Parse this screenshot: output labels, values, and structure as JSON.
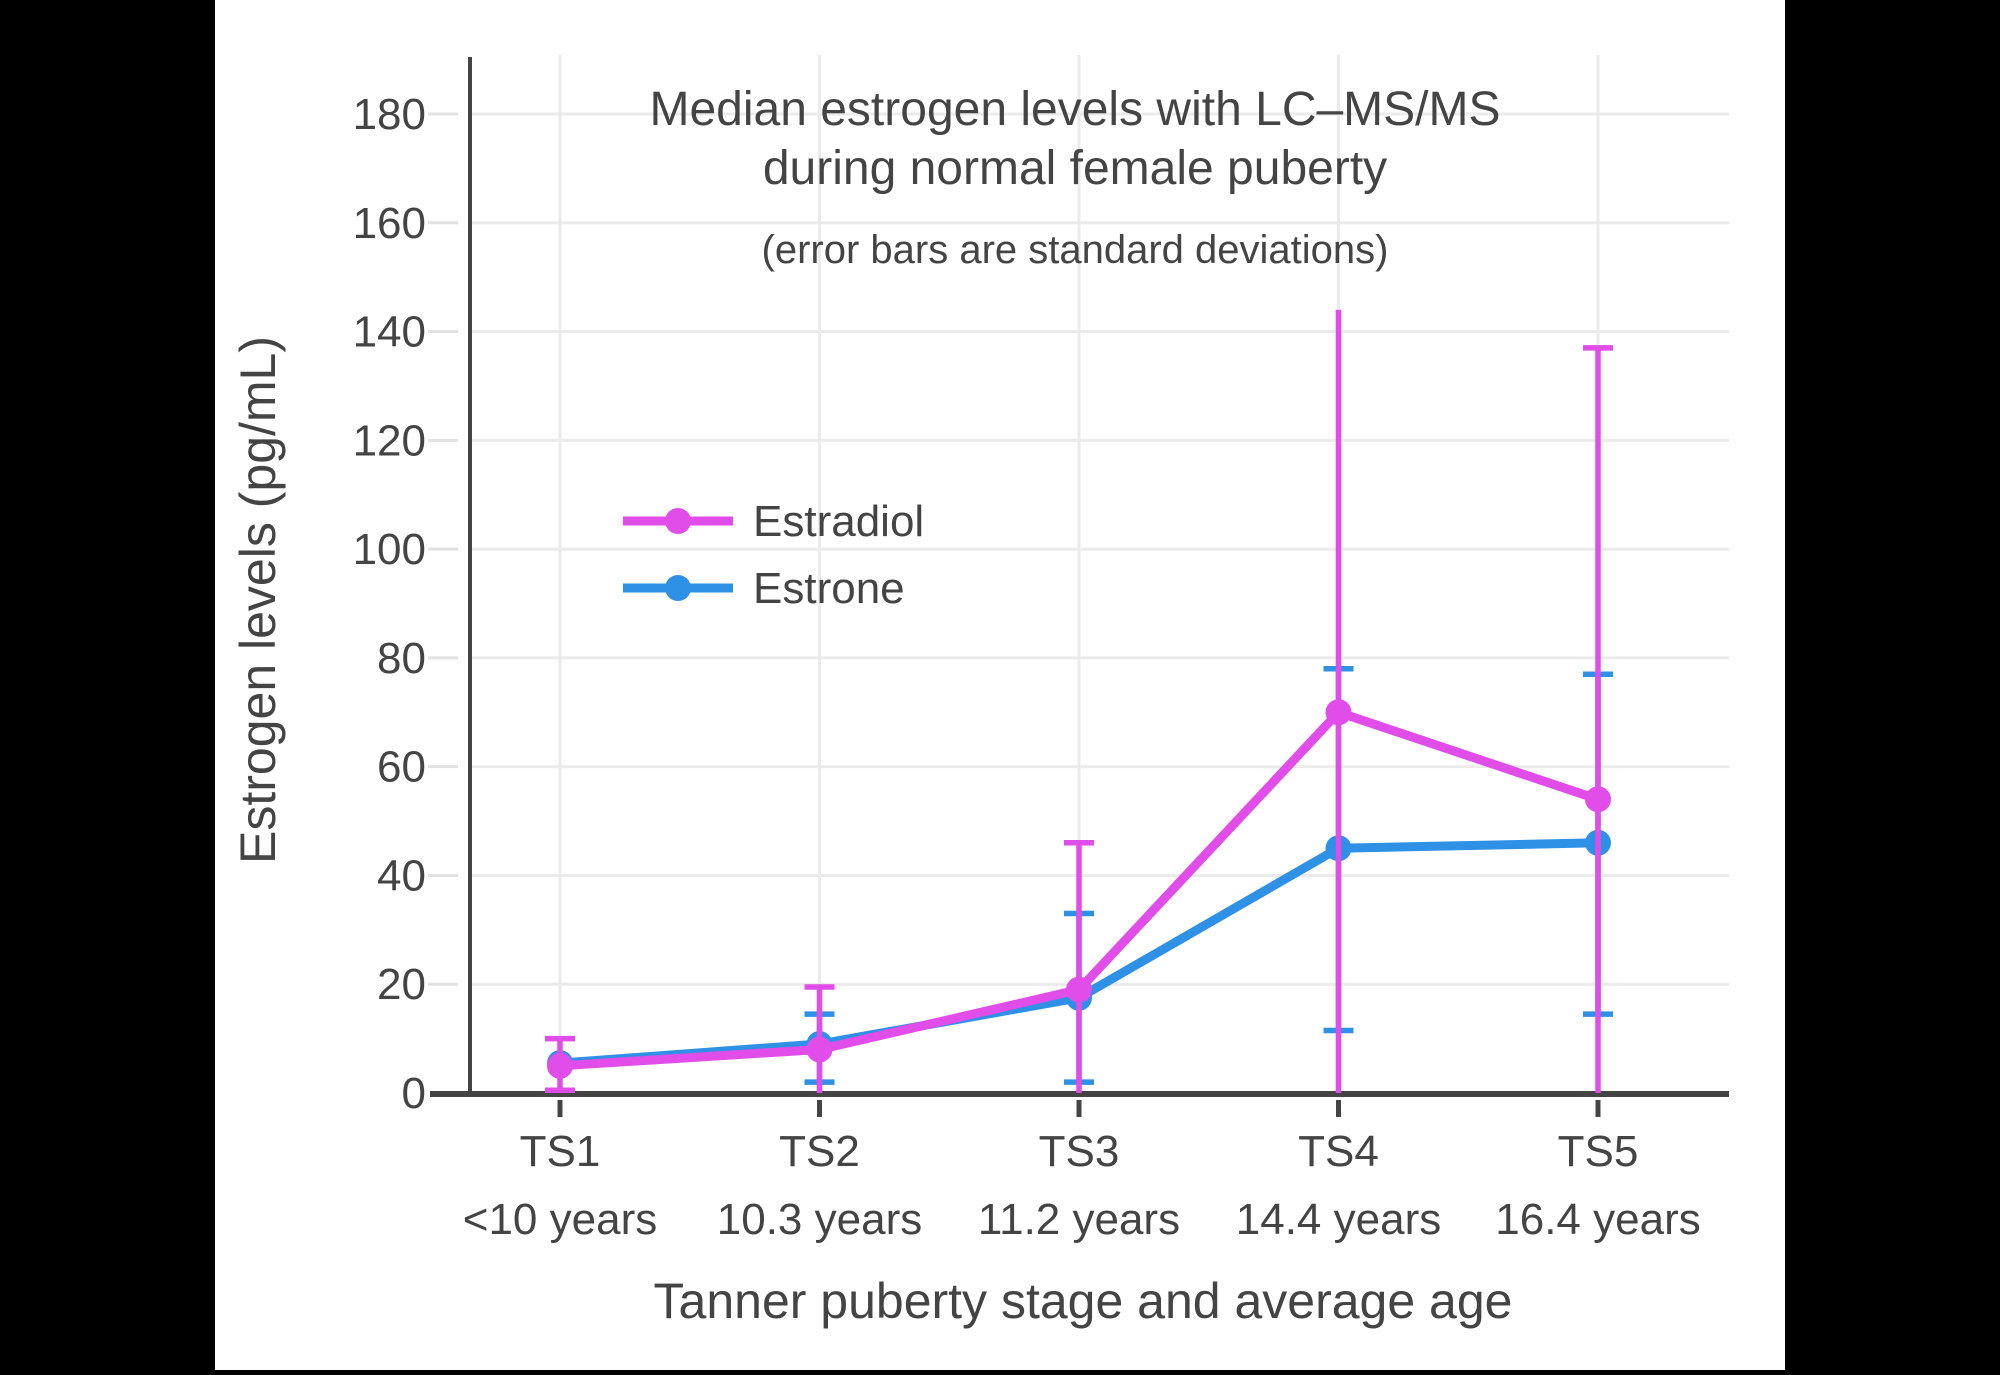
{
  "theme": {
    "page_background": "#000000",
    "chart_background": "#ffffff",
    "text_color": "#444444",
    "grid_color": "#ebebeb",
    "outer_tick_color": "#e2e2e2",
    "axis_color": "#444444",
    "estradiol_color": "#e04de8",
    "estrone_color": "#2e91e5"
  },
  "chart_data": {
    "type": "line",
    "title": "Median estrogen levels with LC–MS/MS during normal female puberty",
    "title_lines": [
      "Median estrogen levels with LC–MS/MS",
      "during normal female puberty"
    ],
    "subtitle": "(error bars are standard deviations)",
    "xlabel": "Tanner puberty stage and average age",
    "ylabel": "Estrogen levels (pg/mL)",
    "categories": [
      "TS1",
      "TS2",
      "TS3",
      "TS4",
      "TS5"
    ],
    "category_ages": [
      "<10 years",
      "10.3 years",
      "11.2 years",
      "14.4 years",
      "16.4 years"
    ],
    "y_ticks": [
      0,
      20,
      40,
      60,
      80,
      100,
      120,
      140,
      160,
      180
    ],
    "ylim": [
      0,
      190
    ],
    "grid": true,
    "legend_position": "inside-left-middle",
    "series": [
      {
        "name": "Estradiol",
        "color": "#e04de8",
        "values": [
          5,
          8,
          19,
          70,
          54
        ],
        "error_low": [
          0.5,
          0,
          0,
          0,
          0
        ],
        "error_high": [
          10,
          19.5,
          46,
          144,
          137
        ],
        "cap_top": [
          true,
          true,
          true,
          false,
          true
        ],
        "cap_bottom": [
          true,
          false,
          false,
          false,
          false
        ]
      },
      {
        "name": "Estrone",
        "color": "#2e91e5",
        "values": [
          5.5,
          9,
          17.5,
          45,
          46
        ],
        "error_low": [
          null,
          2,
          2,
          11.5,
          14.5
        ],
        "error_high": [
          null,
          14.5,
          33,
          78,
          77
        ],
        "cap_top": [
          false,
          true,
          true,
          true,
          true
        ],
        "cap_bottom": [
          false,
          true,
          true,
          true,
          true
        ]
      }
    ]
  }
}
